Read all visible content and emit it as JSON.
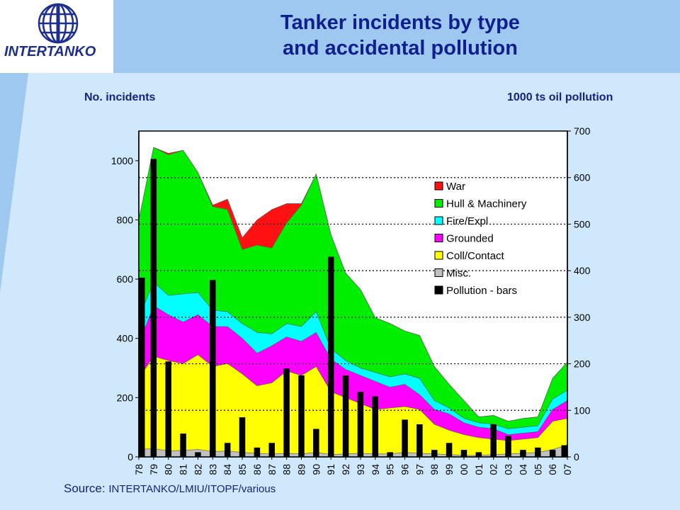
{
  "title_lines": [
    "Tanker incidents by type",
    "and accidental pollution"
  ],
  "logo": {
    "text": "INTERTANKO"
  },
  "left_axis_label": "No. incidents",
  "right_axis_label": "1000 ts oil pollution",
  "source_prefix": "Source:",
  "source_text": "INTERTANKO/LMIU/ITOPF/various",
  "colors": {
    "misc": "#c0c0c0",
    "coll": "#ffff00",
    "grounded": "#ff00ff",
    "fire": "#00ffff",
    "hull": "#00ee00",
    "war": "#ff1111",
    "bars": "#000000"
  },
  "chart_data": {
    "type": "area",
    "x": [
      "78",
      "79",
      "80",
      "81",
      "82",
      "83",
      "84",
      "85",
      "86",
      "87",
      "88",
      "89",
      "90",
      "91",
      "92",
      "93",
      "94",
      "95",
      "96",
      "97",
      "98",
      "99",
      "00",
      "01",
      "02",
      "03",
      "04",
      "05",
      "06",
      "07"
    ],
    "ylim_left": [
      0,
      1100
    ],
    "ylim_right": [
      0,
      700
    ],
    "yticks_left": [
      0,
      200,
      400,
      600,
      800,
      1000
    ],
    "yticks_right": [
      0,
      100,
      200,
      300,
      400,
      500,
      600,
      700
    ],
    "right_gridlines": [
      100,
      200,
      300,
      400,
      500,
      600
    ],
    "legend_position": "right",
    "stacked_series_cumulative": true,
    "series": [
      {
        "name": "Misc.",
        "values": [
          25,
          28,
          20,
          22,
          25,
          18,
          20,
          15,
          12,
          10,
          12,
          10,
          15,
          8,
          10,
          12,
          10,
          10,
          15,
          12,
          10,
          8,
          5,
          5,
          8,
          10,
          12,
          15,
          25,
          40
        ]
      },
      {
        "name": "Coll/Contact",
        "values": [
          265,
          340,
          325,
          315,
          345,
          305,
          315,
          280,
          240,
          250,
          290,
          275,
          305,
          220,
          200,
          180,
          160,
          165,
          170,
          160,
          110,
          90,
          75,
          65,
          60,
          55,
          60,
          65,
          120,
          130
        ]
      },
      {
        "name": "Grounded",
        "values": [
          380,
          510,
          480,
          455,
          480,
          440,
          440,
          400,
          350,
          375,
          405,
          390,
          420,
          330,
          295,
          275,
          255,
          235,
          245,
          210,
          160,
          145,
          115,
          100,
          95,
          75,
          80,
          85,
          160,
          190
        ]
      },
      {
        "name": "Fire/Expl",
        "values": [
          470,
          590,
          545,
          550,
          555,
          495,
          490,
          450,
          420,
          415,
          450,
          440,
          490,
          365,
          325,
          300,
          285,
          270,
          280,
          265,
          190,
          165,
          130,
          115,
          110,
          95,
          100,
          105,
          195,
          225
        ]
      },
      {
        "name": "Hull & Machinery",
        "values": [
          800,
          1045,
          1020,
          1035,
          960,
          845,
          835,
          700,
          715,
          705,
          790,
          850,
          955,
          750,
          620,
          565,
          470,
          450,
          425,
          410,
          305,
          245,
          190,
          135,
          140,
          120,
          130,
          135,
          265,
          320
        ]
      },
      {
        "name": "War",
        "values": [
          800,
          1045,
          1025,
          1035,
          960,
          850,
          870,
          740,
          800,
          835,
          855,
          855,
          955,
          750,
          620,
          565,
          470,
          450,
          425,
          410,
          305,
          245,
          190,
          135,
          140,
          120,
          130,
          135,
          265,
          320
        ]
      },
      {
        "name": "Pollution - bars",
        "axis": "right",
        "values": [
          385,
          640,
          205,
          50,
          10,
          380,
          30,
          85,
          20,
          30,
          190,
          175,
          60,
          430,
          175,
          140,
          130,
          10,
          80,
          70,
          15,
          30,
          15,
          10,
          70,
          45,
          15,
          20,
          15,
          25
        ]
      }
    ]
  }
}
